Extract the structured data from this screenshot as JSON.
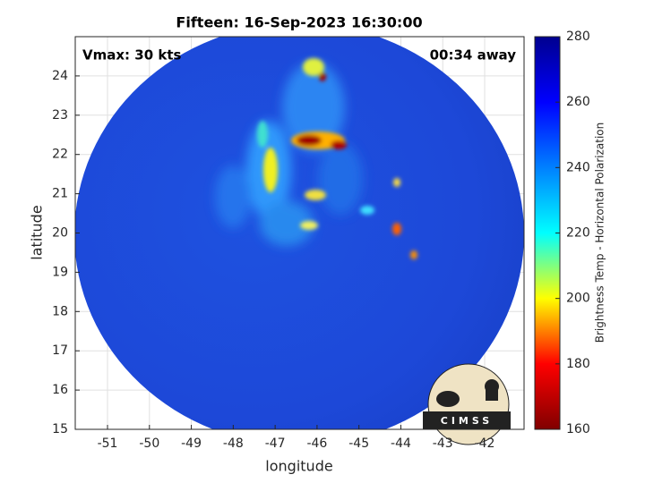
{
  "chart_data": {
    "type": "map",
    "title": "Fifteen: 16-Sep-2023 16:30:00",
    "annotations": [
      "Vmax: 30 kts",
      "00:34 away"
    ],
    "x_label": "longitude",
    "y_label": "latitude",
    "xlim": [
      -51.77,
      -41.06
    ],
    "xticks": [
      -51,
      -50,
      -49,
      -48,
      -47,
      -46,
      -45,
      -44,
      -43,
      -42
    ],
    "ylim": [
      15,
      25
    ],
    "yticks": [
      15,
      16,
      17,
      18,
      19,
      20,
      21,
      22,
      23,
      24
    ],
    "grid": true,
    "colorbar": {
      "label": "Brightness Temp - Horizontal Polarization",
      "lim": [
        160,
        280
      ],
      "ticks": [
        160,
        180,
        200,
        220,
        240,
        260,
        280
      ],
      "colormap": [
        "#800000",
        "#ff0000",
        "#ffff00",
        "#00ffff",
        "#0080ff",
        "#0000ff",
        "#00008f"
      ]
    },
    "logo_text": "CIMSS"
  }
}
